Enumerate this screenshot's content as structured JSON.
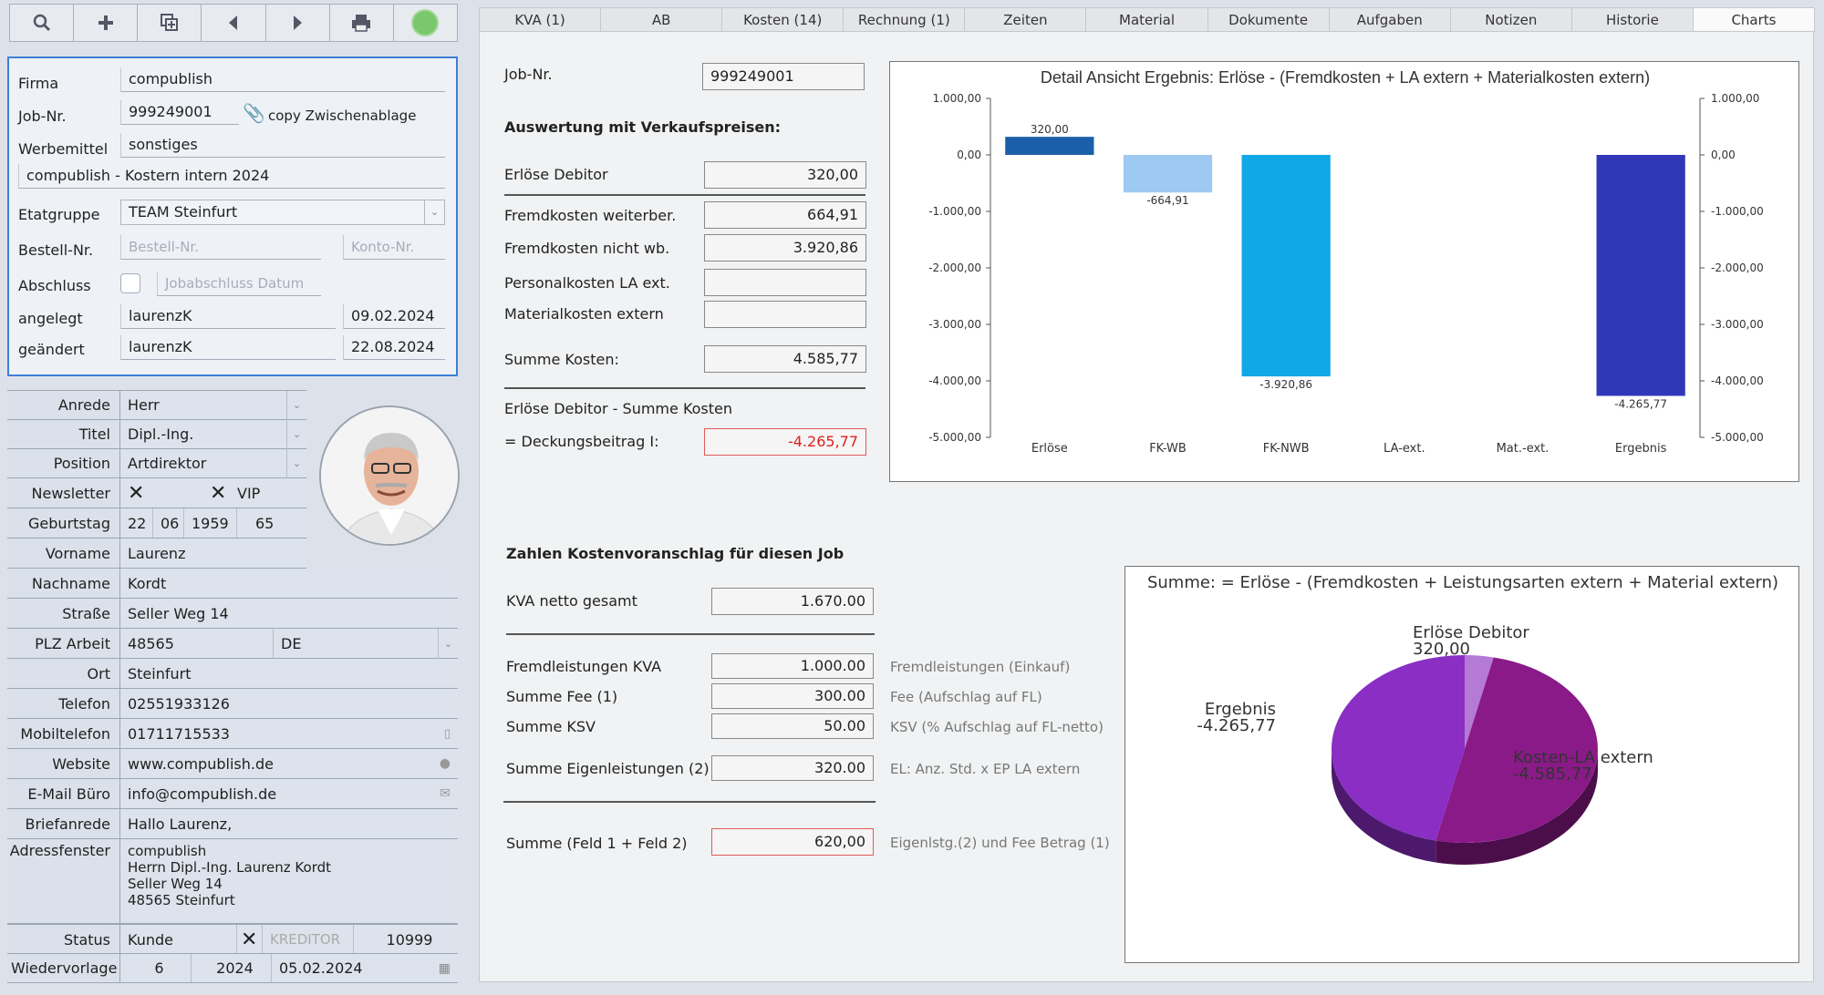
{
  "toolbar": {
    "icons": [
      "search-icon",
      "plus-icon",
      "duplicate-icon",
      "arrow-left-icon",
      "arrow-right-icon",
      "print-icon",
      "status-green-icon"
    ]
  },
  "job": {
    "firma_label": "Firma",
    "firma": "compublish",
    "jobnr_label": "Job-Nr.",
    "jobnr": "999249001",
    "copy": "copy Zwischenablage",
    "werbemittel_label": "Werbemittel",
    "werbemittel": "sonstiges",
    "titel": "compublish - Kostern intern 2024",
    "etat_label": "Etatgruppe",
    "etat": "TEAM Steinfurt",
    "bestell_label": "Bestell-Nr.",
    "bestell_ph": "Bestell-Nr.",
    "konto_ph": "Konto-Nr.",
    "abschluss_label": "Abschluss",
    "abschluss_ph": "Jobabschluss Datum",
    "angelegt_label": "angelegt",
    "angelegt_user": "laurenzK",
    "angelegt_date": "09.02.2024",
    "geaendert_label": "geändert",
    "geaendert_user": "laurenzK",
    "geaendert_date": "22.08.2024"
  },
  "contact": {
    "anrede_label": "Anrede",
    "anrede": "Herr",
    "titel_label": "Titel",
    "titel": "Dipl.-Ing.",
    "position_label": "Position",
    "position": "Artdirektor",
    "newsletter_label": "Newsletter",
    "vip_label": "VIP",
    "geburtstag_label": "Geburtstag",
    "geb_d": "22",
    "geb_m": "06",
    "geb_y": "1959",
    "age": "65",
    "vorname_label": "Vorname",
    "vorname": "Laurenz",
    "nachname_label": "Nachname",
    "nachname": "Kordt",
    "strasse_label": "Straße",
    "strasse": "Seller Weg 14",
    "plz_label": "PLZ Arbeit",
    "plz": "48565",
    "land": "DE",
    "ort_label": "Ort",
    "ort": "Steinfurt",
    "telefon_label": "Telefon",
    "telefon": "02551933126",
    "mobil_label": "Mobiltelefon",
    "mobil": "01711715533",
    "website_label": "Website",
    "website": "www.compublish.de",
    "email_label": "E-Mail Büro",
    "email": "info@compublish.de",
    "brief_label": "Briefanrede",
    "brief": "Hallo Laurenz,",
    "adress_label": "Adressfenster",
    "adress": [
      "compublish",
      "Herrn Dipl.-Ing. Laurenz  Kordt",
      "Seller Weg 14",
      "48565 Steinfurt"
    ],
    "status_label": "Status",
    "status": "Kunde",
    "kreditor": "KREDITOR",
    "status_nr": "10999",
    "wieder_label": "Wiedervorlage",
    "wieder_w": "6",
    "wieder_y": "2024",
    "wieder_date": "05.02.2024"
  },
  "tabs": [
    "KVA (1)",
    "AB",
    "Kosten (14)",
    "Rechnung (1)",
    "Zeiten",
    "Material",
    "Dokumente",
    "Aufgaben",
    "Notizen",
    "Historie",
    "Charts"
  ],
  "active_tab": "Charts",
  "eval": {
    "jobnr_label": "Job-Nr.",
    "jobnr": "999249001",
    "heading": "Auswertung mit Verkaufspreisen:",
    "erloese_label": "Erlöse Debitor",
    "erloese": "320,00",
    "fk_wb_label": "Fremdkosten weiterber.",
    "fk_wb": "664,91",
    "fk_nwb_label": "Fremdkosten nicht wb.",
    "fk_nwb": "3.920,86",
    "pers_label": "Personalkosten LA ext.",
    "pers": "",
    "mat_label": "Materialkosten extern",
    "mat": "",
    "summe_label": "Summe Kosten:",
    "summe": "4.585,77",
    "formula": "Erlöse Debitor - Summe Kosten",
    "db_label": "= Deckungsbeitrag I:",
    "db": "-4.265,77"
  },
  "kva": {
    "heading": "Zahlen Kostenvoranschlag für diesen Job",
    "netto_label": "KVA netto gesamt",
    "netto": "1.670.00",
    "rows": [
      {
        "label": "Fremdleistungen KVA",
        "value": "1.000.00",
        "hint": "Fremdleistungen (Einkauf)"
      },
      {
        "label": "Summe Fee (1)",
        "value": "300.00",
        "hint": "Fee (Aufschlag auf FL)"
      },
      {
        "label": "Summe KSV",
        "value": "50.00",
        "hint": "KSV (% Aufschlag auf FL-netto)"
      },
      {
        "label": "Summe Eigenleistungen (2)",
        "value": "320.00",
        "hint": "EL: Anz. Std. x EP LA extern"
      }
    ],
    "sum_label": "Summe (Feld 1 + Feld 2)",
    "sum": "620,00",
    "sum_hint": "Eigenlstg.(2) und Fee Betrag (1)"
  },
  "chart_data": [
    {
      "type": "bar",
      "title": "Detail Ansicht Ergebnis: Erlöse - (Fremdkosten + LA extern + Materialkosten extern)",
      "categories": [
        "Erlöse",
        "FK-WB",
        "FK-NWB",
        "LA-ext.",
        "Mat.-ext.",
        "Ergebnis"
      ],
      "values": [
        320,
        -664.91,
        -3920.86,
        0,
        0,
        -4265.77
      ],
      "value_labels": [
        "320,00",
        "-664,91",
        "-3.920,86",
        "",
        "",
        "-4.265,77"
      ],
      "colors": [
        "#1a5fa8",
        "#9ec9f0",
        "#10a8e6",
        "#ffffff",
        "#ffffff",
        "#3138b8"
      ],
      "ylim": [
        -5000,
        1000
      ],
      "yticks": [
        1000,
        0,
        -1000,
        -2000,
        -3000,
        -4000,
        -5000
      ],
      "ytick_labels": [
        "1.000,00",
        "0,00",
        "-1.000,00",
        "-2.000,00",
        "-3.000,00",
        "-4.000,00",
        "-5.000,00"
      ],
      "grid": false,
      "axes": "left and right"
    },
    {
      "type": "pie",
      "title": "Summe: = Erlöse - (Fremdkosten + Leistungsarten extern + Material extern)",
      "slices": [
        {
          "name": "Erlöse Debitor",
          "value": 320,
          "value_label": "320,00",
          "color": "#b57ad6"
        },
        {
          "name": "Kosten-LA extern",
          "value": 4585.77,
          "value_label": "-4.585,77",
          "color": "#8a1a88"
        },
        {
          "name": "Ergebnis",
          "value": 4265.77,
          "value_label": "-4.265,77",
          "color": "#8a2ec4"
        }
      ]
    }
  ]
}
